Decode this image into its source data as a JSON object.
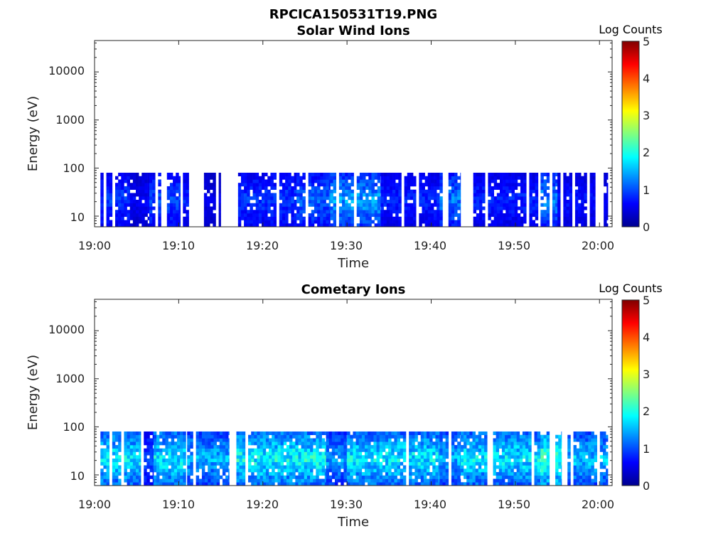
{
  "figure_title": "RPCICA150531T19.PNG",
  "chart_data": [
    {
      "type": "heatmap",
      "title": "Solar Wind Ions",
      "xlabel": "Time",
      "ylabel": "Energy (eV)",
      "x_ticks": [
        "19:00",
        "19:10",
        "19:20",
        "19:30",
        "19:40",
        "19:50",
        "20:00"
      ],
      "xlim_minutes": [
        0,
        61.5
      ],
      "y_scale": "log",
      "ylim": [
        6,
        45000
      ],
      "y_ticks": [
        "10",
        "100",
        "1000",
        "10000"
      ],
      "energy_range_with_counts": [
        6,
        80
      ],
      "typical_log_counts": 0.8,
      "peak_log_counts": 1.8,
      "colorbar": {
        "label": "Log Counts",
        "min": 0,
        "max": 5,
        "ticks": [
          "0",
          "1",
          "2",
          "3",
          "4",
          "5"
        ],
        "colormap": "jet"
      },
      "activity": [
        {
          "start": 0.7,
          "end": 4.2,
          "level": 0.9
        },
        {
          "start": 4.2,
          "end": 6.5,
          "level": 0.6
        },
        {
          "start": 6.5,
          "end": 10.2,
          "level": 1.0
        },
        {
          "start": 10.5,
          "end": 11.2,
          "level": 0.8
        },
        {
          "start": 13.0,
          "end": 15.0,
          "level": 0.5
        },
        {
          "start": 16.0,
          "end": 24.0,
          "level": 0.9
        },
        {
          "start": 24.0,
          "end": 28.0,
          "level": 1.1
        },
        {
          "start": 28.0,
          "end": 34.0,
          "level": 1.4
        },
        {
          "start": 34.0,
          "end": 41.0,
          "level": 0.8
        },
        {
          "start": 41.0,
          "end": 43.5,
          "level": 1.2
        },
        {
          "start": 45.0,
          "end": 53.0,
          "level": 0.8
        },
        {
          "start": 53.0,
          "end": 55.0,
          "level": 1.3
        },
        {
          "start": 55.0,
          "end": 59.5,
          "level": 0.7
        },
        {
          "start": 60.5,
          "end": 61.0,
          "level": 0.6
        }
      ]
    },
    {
      "type": "heatmap",
      "title": "Cometary Ions",
      "xlabel": "Time",
      "ylabel": "Energy (eV)",
      "x_ticks": [
        "19:00",
        "19:10",
        "19:20",
        "19:30",
        "19:40",
        "19:50",
        "20:00"
      ],
      "xlim_minutes": [
        0,
        61.5
      ],
      "y_scale": "log",
      "ylim": [
        6,
        45000
      ],
      "y_ticks": [
        "10",
        "100",
        "1000",
        "10000"
      ],
      "energy_range_with_counts": [
        6,
        80
      ],
      "typical_log_counts": 1.6,
      "peak_log_counts": 2.3,
      "colorbar": {
        "label": "Log Counts",
        "min": 0,
        "max": 5,
        "ticks": [
          "0",
          "1",
          "2",
          "3",
          "4",
          "5"
        ],
        "colormap": "jet"
      },
      "activity": [
        {
          "start": 0.7,
          "end": 5.5,
          "level": 1.8
        },
        {
          "start": 5.5,
          "end": 7.0,
          "level": 1.0
        },
        {
          "start": 7.0,
          "end": 11.0,
          "level": 1.8
        },
        {
          "start": 11.0,
          "end": 16.0,
          "level": 1.5
        },
        {
          "start": 16.5,
          "end": 27.5,
          "level": 1.9
        },
        {
          "start": 27.5,
          "end": 30.0,
          "level": 1.4
        },
        {
          "start": 30.0,
          "end": 41.0,
          "level": 1.8
        },
        {
          "start": 41.0,
          "end": 43.5,
          "level": 1.5
        },
        {
          "start": 43.5,
          "end": 53.0,
          "level": 1.8
        },
        {
          "start": 53.0,
          "end": 55.5,
          "level": 2.1
        },
        {
          "start": 55.5,
          "end": 61.0,
          "level": 1.6
        }
      ]
    }
  ]
}
